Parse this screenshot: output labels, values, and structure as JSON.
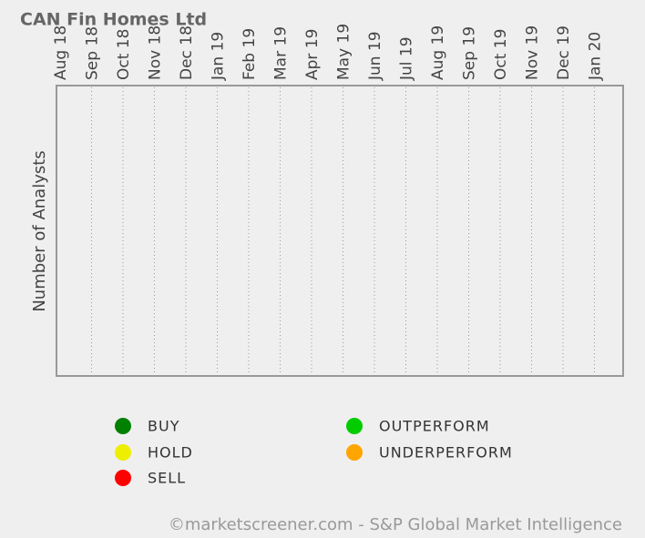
{
  "chart_data": {
    "type": "bar",
    "stacked": true,
    "title": "CAN Fin Homes Ltd",
    "y_label": "Number of Analysts",
    "categories": [
      "Aug 18",
      "Sep 18",
      "Oct 18",
      "Nov 18",
      "Dec 18",
      "Jan 19",
      "Feb 19",
      "Mar 19",
      "Apr 19",
      "May 19",
      "Jun 19",
      "Jul 19",
      "Aug 19",
      "Sep 19",
      "Oct 19",
      "Nov 19",
      "Dec 19",
      "Jan 20"
    ],
    "series": [
      {
        "name": "BUY",
        "color": "#008000",
        "values": [
          null,
          null,
          null,
          null,
          null,
          null,
          null,
          null,
          null,
          null,
          null,
          null,
          null,
          null,
          null,
          null,
          null,
          null
        ]
      },
      {
        "name": "OUTPERFORM",
        "color": "#00cc00",
        "values": [
          null,
          null,
          null,
          null,
          null,
          null,
          null,
          null,
          null,
          null,
          null,
          null,
          null,
          null,
          null,
          null,
          null,
          null
        ]
      },
      {
        "name": "HOLD",
        "color": "#eeee00",
        "values": [
          null,
          null,
          null,
          null,
          null,
          null,
          null,
          null,
          null,
          null,
          null,
          null,
          null,
          null,
          null,
          null,
          null,
          null
        ]
      },
      {
        "name": "UNDERPERFORM",
        "color": "#ffa500",
        "values": [
          null,
          null,
          null,
          null,
          null,
          null,
          null,
          null,
          null,
          null,
          null,
          null,
          null,
          null,
          null,
          null,
          null,
          null
        ]
      },
      {
        "name": "SELL",
        "color": "#ff0000",
        "values": [
          null,
          null,
          null,
          null,
          null,
          null,
          null,
          null,
          null,
          null,
          null,
          null,
          null,
          null,
          null,
          null,
          null,
          null
        ]
      }
    ],
    "grid": true,
    "footer": "©marketscreener.com - S&P Global Market Intelligence"
  }
}
